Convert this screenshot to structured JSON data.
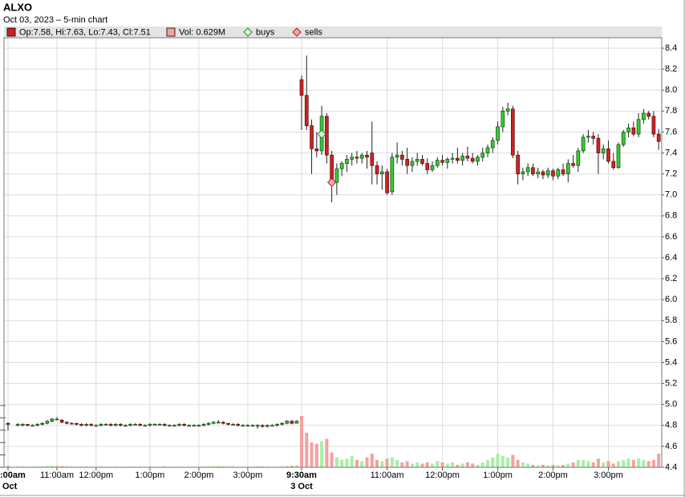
{
  "chart_data": {
    "type": "candlestick",
    "title": "ALXO",
    "subtitle": "Oct 03, 2023 – 5-min chart",
    "legend": {
      "price": "Op:7.58, Hi:7.63, Lo:7.43, Cl:7.51",
      "volume": "Vol: 0.629M",
      "buys": "buys",
      "sells": "sells"
    },
    "up_color": "#33cc33",
    "down_color": "#cc2222",
    "up_volume_color": "#a6f0a6",
    "down_volume_color": "#f7a0a0",
    "buy_color": "#d8f5d8",
    "sell_color": "#f5a8a8",
    "grid": true,
    "ylim": [
      4.4,
      8.5
    ],
    "yticks": [
      4.4,
      4.6,
      4.8,
      {
        "value": 5,
        "label": "5.0"
      },
      5.2,
      5.4,
      5.6,
      5.8,
      {
        "value": 6,
        "label": "6.0"
      },
      6.2,
      6.4,
      6.6,
      6.8,
      {
        "value": 7,
        "label": "7.0"
      },
      7.2,
      7.4,
      7.6,
      7.8,
      {
        "value": 8,
        "label": "8.0"
      },
      8.2,
      8.4
    ],
    "volume_ylim": [
      0,
      250
    ],
    "volume_ticks": [
      0,
      50,
      100,
      150,
      200,
      250
    ],
    "days": [
      {
        "label": "Oct",
        "categories": [
          ":00am",
          null,
          null,
          null,
          null,
          null,
          null,
          null,
          null,
          null,
          "11:00am",
          null,
          null,
          null,
          null,
          null,
          null,
          null,
          "12:00pm",
          null,
          null,
          null,
          null,
          null,
          null,
          null,
          null,
          null,
          null,
          "1:00pm",
          null,
          null,
          null,
          null,
          null,
          null,
          null,
          null,
          null,
          "2:00pm",
          null,
          null,
          null,
          null,
          null,
          null,
          null,
          null,
          null,
          "3:00pm",
          null,
          null,
          null,
          null,
          null,
          null,
          null,
          null,
          null,
          null
        ],
        "open": [
          4.82,
          null,
          4.8,
          4.8,
          4.81,
          4.8,
          4.8,
          4.81,
          4.82,
          4.84,
          4.86,
          4.85,
          4.83,
          4.82,
          4.82,
          4.81,
          4.8,
          4.81,
          4.8,
          4.8,
          4.81,
          4.81,
          4.8,
          4.81,
          4.8,
          4.8,
          4.81,
          4.81,
          4.8,
          4.8,
          4.81,
          4.81,
          4.81,
          4.8,
          4.8,
          4.8,
          4.81,
          4.8,
          4.8,
          4.8,
          4.8,
          4.81,
          4.82,
          4.83,
          4.83,
          4.82,
          4.81,
          4.81,
          4.8,
          4.8,
          4.8,
          4.8,
          4.8,
          4.79,
          4.8,
          4.8,
          4.81,
          4.82,
          4.84,
          4.82
        ],
        "high": [
          4.83,
          null,
          4.82,
          4.82,
          4.81,
          4.81,
          4.82,
          4.83,
          4.85,
          4.87,
          4.88,
          4.86,
          4.84,
          4.83,
          4.82,
          4.82,
          4.82,
          4.82,
          4.81,
          4.82,
          4.82,
          4.82,
          4.82,
          4.82,
          4.81,
          4.82,
          4.82,
          4.82,
          4.81,
          4.82,
          4.82,
          4.82,
          4.82,
          4.81,
          4.81,
          4.82,
          4.82,
          4.81,
          4.81,
          4.81,
          4.82,
          4.83,
          4.84,
          4.85,
          4.84,
          4.82,
          4.82,
          4.82,
          4.81,
          4.81,
          4.81,
          4.81,
          4.81,
          4.81,
          4.81,
          4.82,
          4.83,
          4.85,
          4.85,
          4.85
        ],
        "low": [
          4.75,
          null,
          4.79,
          4.79,
          4.79,
          4.79,
          4.79,
          4.8,
          4.81,
          4.83,
          4.85,
          4.82,
          4.81,
          4.81,
          4.8,
          4.79,
          4.79,
          4.79,
          4.79,
          4.79,
          4.8,
          4.79,
          4.79,
          4.79,
          4.79,
          4.79,
          4.8,
          4.79,
          4.79,
          4.79,
          4.8,
          4.8,
          4.79,
          4.79,
          4.79,
          4.79,
          4.79,
          4.79,
          4.79,
          4.79,
          4.79,
          4.8,
          4.81,
          4.82,
          4.81,
          4.8,
          4.8,
          4.79,
          4.79,
          4.79,
          4.79,
          4.77,
          4.78,
          4.78,
          4.79,
          4.79,
          4.8,
          4.81,
          4.81,
          4.82
        ],
        "close": [
          4.81,
          null,
          4.81,
          4.81,
          4.8,
          4.8,
          4.81,
          4.82,
          4.84,
          4.86,
          4.86,
          4.83,
          4.82,
          4.82,
          4.81,
          4.8,
          4.81,
          4.8,
          4.8,
          4.81,
          4.81,
          4.8,
          4.81,
          4.8,
          4.8,
          4.81,
          4.81,
          4.8,
          4.8,
          4.81,
          4.81,
          4.81,
          4.8,
          4.8,
          4.8,
          4.81,
          4.8,
          4.8,
          4.8,
          4.8,
          4.81,
          4.82,
          4.83,
          4.83,
          4.82,
          4.81,
          4.81,
          4.8,
          4.8,
          4.8,
          4.8,
          4.8,
          4.79,
          4.8,
          4.8,
          4.81,
          4.82,
          4.84,
          4.82,
          4.84
        ],
        "volume": [
          6,
          null,
          3,
          4,
          2,
          3,
          3,
          4,
          5,
          6,
          7,
          5,
          3,
          3,
          2,
          2,
          3,
          2,
          2,
          3,
          2,
          2,
          3,
          2,
          2,
          3,
          2,
          2,
          2,
          3,
          2,
          2,
          3,
          2,
          2,
          3,
          2,
          2,
          2,
          2,
          3,
          4,
          5,
          5,
          4,
          3,
          3,
          2,
          2,
          2,
          2,
          4,
          3,
          3,
          2,
          3,
          4,
          5,
          6,
          8
        ]
      },
      {
        "label": "3 Oct",
        "categories": [
          "9:30am",
          null,
          null,
          null,
          null,
          null,
          null,
          null,
          null,
          null,
          null,
          null,
          null,
          null,
          null,
          null,
          null,
          "11:00am",
          null,
          null,
          null,
          null,
          null,
          null,
          null,
          null,
          null,
          null,
          "12:00pm",
          null,
          null,
          null,
          null,
          null,
          null,
          null,
          null,
          null,
          null,
          "1:00pm",
          null,
          null,
          null,
          null,
          null,
          null,
          null,
          null,
          null,
          null,
          "2:00pm",
          null,
          null,
          null,
          null,
          null,
          null,
          null,
          null,
          null,
          null,
          "3:00pm",
          null,
          null,
          null,
          null,
          null,
          null,
          null,
          null,
          null,
          null
        ],
        "open": [
          8.1,
          7.95,
          7.66,
          7.44,
          7.42,
          7.75,
          7.38,
          7.12,
          7.25,
          7.3,
          7.34,
          7.36,
          7.35,
          7.38,
          7.4,
          7.28,
          7.2,
          7.22,
          7.03,
          7.36,
          7.38,
          7.34,
          7.28,
          7.32,
          7.34,
          7.3,
          7.24,
          7.28,
          7.33,
          7.31,
          7.34,
          7.35,
          7.33,
          7.37,
          7.35,
          7.32,
          7.36,
          7.4,
          7.45,
          7.52,
          7.65,
          7.8,
          7.82,
          7.38,
          7.2,
          7.22,
          7.26,
          7.2,
          7.22,
          7.19,
          7.23,
          7.18,
          7.24,
          7.2,
          7.3,
          7.28,
          7.42,
          7.55,
          7.56,
          7.54,
          7.4,
          7.44,
          7.32,
          7.26,
          7.48,
          7.6,
          7.64,
          7.58,
          7.72,
          7.78,
          7.75,
          7.58
        ],
        "high": [
          8.14,
          8.33,
          7.72,
          7.6,
          7.85,
          7.78,
          7.42,
          7.3,
          7.32,
          7.38,
          7.4,
          7.42,
          7.4,
          7.42,
          7.7,
          7.32,
          7.28,
          7.25,
          7.4,
          7.5,
          7.42,
          7.45,
          7.36,
          7.4,
          7.38,
          7.35,
          7.32,
          7.36,
          7.38,
          7.36,
          7.4,
          7.45,
          7.4,
          7.46,
          7.4,
          7.38,
          7.45,
          7.48,
          7.55,
          7.7,
          7.84,
          7.88,
          7.85,
          7.42,
          7.26,
          7.3,
          7.3,
          7.26,
          7.24,
          7.26,
          7.25,
          7.26,
          7.3,
          7.34,
          7.38,
          7.45,
          7.58,
          7.62,
          7.6,
          7.58,
          7.48,
          7.52,
          7.4,
          7.5,
          7.62,
          7.68,
          7.7,
          7.78,
          7.82,
          7.8,
          7.8,
          7.63
        ],
        "low": [
          7.62,
          7.62,
          7.2,
          7.36,
          7.38,
          7.3,
          6.93,
          7.0,
          7.18,
          7.22,
          7.28,
          7.3,
          7.3,
          7.25,
          7.1,
          7.1,
          7.05,
          7.0,
          7.0,
          7.3,
          7.28,
          7.2,
          7.22,
          7.28,
          7.28,
          7.2,
          7.22,
          7.26,
          7.28,
          7.25,
          7.3,
          7.3,
          7.28,
          7.32,
          7.3,
          7.28,
          7.32,
          7.36,
          7.4,
          7.48,
          7.6,
          7.76,
          7.35,
          7.1,
          7.14,
          7.18,
          7.18,
          7.16,
          7.15,
          7.16,
          7.14,
          7.15,
          7.18,
          7.12,
          7.26,
          7.22,
          7.4,
          7.5,
          7.48,
          7.2,
          7.34,
          7.3,
          7.24,
          7.25,
          7.46,
          7.55,
          7.56,
          7.55,
          7.68,
          7.72,
          7.55,
          7.43
        ],
        "close": [
          7.95,
          7.66,
          7.44,
          7.42,
          7.75,
          7.38,
          7.12,
          7.25,
          7.3,
          7.34,
          7.36,
          7.35,
          7.38,
          7.36,
          7.28,
          7.2,
          7.22,
          7.02,
          7.36,
          7.38,
          7.34,
          7.28,
          7.32,
          7.34,
          7.3,
          7.24,
          7.28,
          7.33,
          7.31,
          7.34,
          7.35,
          7.33,
          7.37,
          7.35,
          7.32,
          7.36,
          7.4,
          7.45,
          7.52,
          7.65,
          7.8,
          7.82,
          7.38,
          7.2,
          7.22,
          7.26,
          7.2,
          7.22,
          7.19,
          7.23,
          7.18,
          7.24,
          7.2,
          7.3,
          7.28,
          7.42,
          7.55,
          7.56,
          7.54,
          7.4,
          7.44,
          7.32,
          7.26,
          7.48,
          7.6,
          7.64,
          7.58,
          7.72,
          7.78,
          7.75,
          7.58,
          7.51
        ],
        "volume": [
          208,
          140,
          100,
          95,
          105,
          115,
          60,
          40,
          30,
          35,
          45,
          30,
          25,
          40,
          55,
          30,
          25,
          35,
          40,
          30,
          20,
          25,
          15,
          20,
          15,
          20,
          15,
          25,
          20,
          15,
          20,
          10,
          15,
          20,
          15,
          10,
          20,
          30,
          40,
          55,
          45,
          40,
          50,
          30,
          20,
          15,
          10,
          8,
          10,
          8,
          10,
          8,
          10,
          15,
          20,
          30,
          30,
          25,
          20,
          35,
          20,
          25,
          15,
          25,
          30,
          35,
          30,
          35,
          30,
          25,
          30,
          55
        ],
        "buys": [
          null,
          null,
          null,
          null,
          7.58,
          null,
          null,
          null,
          null,
          null,
          null,
          null,
          null,
          null,
          null,
          null,
          null,
          null,
          null,
          null,
          null,
          null,
          null,
          null,
          null,
          null,
          null,
          null,
          null,
          null,
          null,
          null,
          null,
          null,
          null,
          null,
          null,
          null,
          null,
          null,
          null,
          null,
          null,
          null,
          null,
          null,
          null,
          null,
          null,
          null,
          null,
          null,
          null,
          null,
          null,
          null,
          null,
          null,
          null,
          null,
          null,
          null,
          null,
          null,
          null,
          null,
          null,
          null,
          null,
          null,
          null,
          null
        ],
        "sells": [
          null,
          null,
          null,
          null,
          null,
          null,
          7.12,
          null,
          null,
          null,
          null,
          null,
          null,
          null,
          null,
          null,
          null,
          null,
          null,
          null,
          null,
          null,
          null,
          null,
          null,
          null,
          null,
          null,
          null,
          null,
          null,
          null,
          null,
          null,
          null,
          null,
          null,
          null,
          null,
          null,
          null,
          null,
          null,
          null,
          null,
          null,
          null,
          null,
          null,
          null,
          null,
          null,
          null,
          null,
          null,
          null,
          null,
          null,
          null,
          null,
          null,
          null,
          null,
          null,
          null,
          null,
          null,
          null,
          null,
          null,
          null,
          null
        ]
      }
    ]
  }
}
